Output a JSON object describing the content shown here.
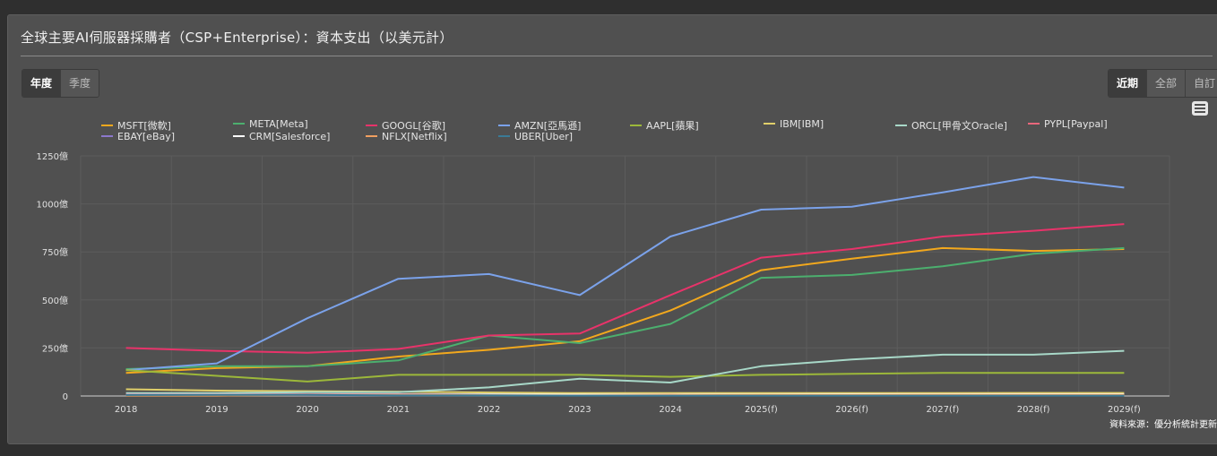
{
  "title": "全球主要AI伺服器採購者（CSP+Enterprise）：資本支出（以美元計）",
  "period_buttons": [
    "年度",
    "季度"
  ],
  "range_buttons": [
    "近期",
    "全部",
    "自訂"
  ],
  "source": "資料來源：優分析統計更新",
  "chart_data": {
    "type": "line",
    "categories": [
      "2018",
      "2019",
      "2020",
      "2021",
      "2022",
      "2023",
      "2024",
      "2025(f)",
      "2026(f)",
      "2027(f)",
      "2028(f)",
      "2029(f)"
    ],
    "y_ticks": [
      "0",
      "250億",
      "500億",
      "750億",
      "1000億",
      "1250億"
    ],
    "ylim": [
      0,
      1250
    ],
    "grid": true,
    "legend_position": "top",
    "series": [
      {
        "name": "MSFT[微軟]",
        "color": "#f2a81d",
        "values": [
          120,
          145,
          155,
          205,
          240,
          285,
          445,
          655,
          715,
          770,
          755,
          765
        ]
      },
      {
        "name": "META[Meta]",
        "color": "#4caf6e",
        "values": [
          140,
          155,
          155,
          185,
          315,
          275,
          375,
          615,
          630,
          675,
          740,
          770
        ]
      },
      {
        "name": "GOOGL[谷歌]",
        "color": "#e8336a",
        "values": [
          250,
          235,
          225,
          245,
          315,
          325,
          525,
          720,
          765,
          830,
          860,
          895
        ]
      },
      {
        "name": "AMZN[亞馬遜]",
        "color": "#7ba2ea",
        "values": [
          135,
          170,
          405,
          610,
          635,
          525,
          830,
          970,
          985,
          1060,
          1140,
          1085
        ]
      },
      {
        "name": "AAPL[蘋果]",
        "color": "#9cb83a",
        "values": [
          135,
          105,
          75,
          110,
          110,
          110,
          100,
          110,
          115,
          120,
          120,
          120
        ]
      },
      {
        "name": "IBM[IBM]",
        "color": "#e0cf6a",
        "values": [
          35,
          28,
          25,
          22,
          18,
          15,
          15,
          15,
          15,
          15,
          16,
          16
        ]
      },
      {
        "name": "ORCL[甲骨文Oracle]",
        "color": "#a8d8c8",
        "values": [
          15,
          15,
          20,
          20,
          45,
          90,
          70,
          155,
          190,
          215,
          215,
          235
        ]
      },
      {
        "name": "PYPL[Paypal]",
        "color": "#e8677c",
        "values": [
          8,
          8,
          9,
          9,
          7,
          6,
          7,
          7,
          7,
          7,
          7,
          7
        ]
      },
      {
        "name": "EBAY[eBay]",
        "color": "#8c78cc",
        "values": [
          6,
          5,
          4,
          4,
          4,
          4,
          4,
          4,
          4,
          4,
          4,
          4
        ]
      },
      {
        "name": "CRM[Salesforce]",
        "color": "#ffffff",
        "values": [
          6,
          7,
          7,
          7,
          8,
          7,
          6,
          7,
          8,
          8,
          9,
          9
        ]
      },
      {
        "name": "NFLX[Netflix]",
        "color": "#f0a060",
        "values": [
          2,
          2,
          5,
          5,
          4,
          3,
          4,
          5,
          5,
          6,
          6,
          6
        ]
      },
      {
        "name": "UBER[Uber]",
        "color": "#3a7a96",
        "values": [
          5,
          6,
          6,
          3,
          3,
          2,
          2,
          2,
          2,
          2,
          2,
          2
        ]
      }
    ]
  }
}
